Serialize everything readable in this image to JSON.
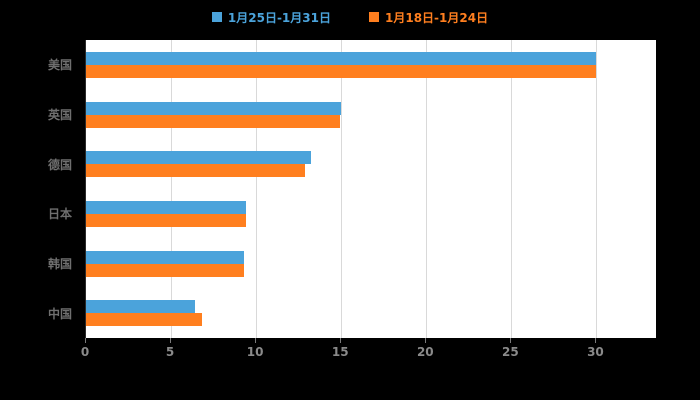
{
  "chart_data": {
    "type": "bar",
    "orientation": "horizontal",
    "title": "",
    "xlabel": "",
    "ylabel": "",
    "categories": [
      "美国",
      "英国",
      "德国",
      "日本",
      "韩国",
      "中国"
    ],
    "series": [
      {
        "name": "1月25日-1月31日",
        "color": "#4BA3DB",
        "values": [
          30,
          15,
          13.2,
          9.4,
          9.3,
          6.4
        ]
      },
      {
        "name": "1月18日-1月24日",
        "color": "#FF7F1F",
        "values": [
          30,
          14.9,
          12.9,
          9.4,
          9.3,
          6.8
        ]
      }
    ],
    "xticks": [
      0,
      5,
      10,
      15,
      20,
      25,
      30
    ],
    "xlim": [
      0,
      33.5
    ],
    "grid": true,
    "legend_position": "top",
    "background": "#000000",
    "plot_background": "#FFFFFF",
    "gridline_color": "#d9d9d9",
    "axis_label_color": "#8a8a8a",
    "category_label_color": "#6f6f6f"
  }
}
